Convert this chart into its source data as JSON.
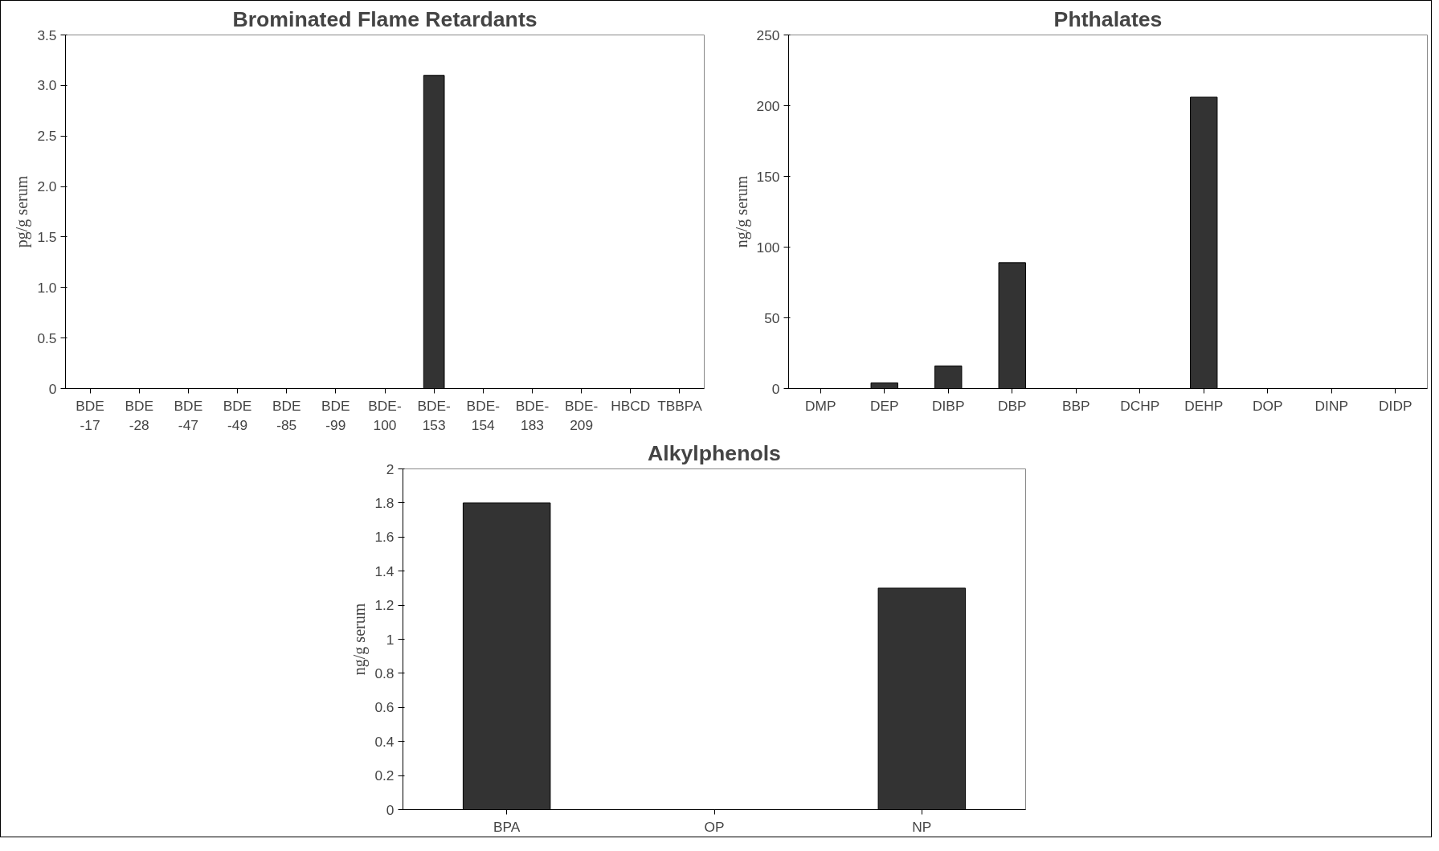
{
  "chart_data": [
    {
      "type": "bar",
      "title": "Brominated Flame Retardants",
      "ylabel": "pg/g serum",
      "categories": [
        "BDE\n-17",
        "BDE\n-28",
        "BDE\n-47",
        "BDE\n-49",
        "BDE\n-85",
        "BDE\n-99",
        "BDE-\n100",
        "BDE-\n153",
        "BDE-\n154",
        "BDE-\n183",
        "BDE-\n209",
        "HBCD",
        "TBBPA"
      ],
      "values": [
        0,
        0,
        0,
        0,
        0,
        0,
        0,
        3.1,
        0,
        0,
        0,
        0,
        0
      ],
      "color": "#333333",
      "ylim": [
        0,
        3.5
      ],
      "yticks": [
        0,
        {
          "value": 0.5,
          "label": "0.5"
        },
        {
          "value": 1,
          "label": "1.0"
        },
        {
          "value": 1.5,
          "label": "1.5"
        },
        {
          "value": 2,
          "label": "2.0"
        },
        {
          "value": 2.5,
          "label": "2.5"
        },
        {
          "value": 3,
          "label": "3.0"
        },
        {
          "value": 3.5,
          "label": "3.5"
        }
      ],
      "grid": false
    },
    {
      "type": "bar",
      "title": "Phthalates",
      "ylabel": "ng/g serum",
      "categories": [
        "DMP",
        "DEP",
        "DIBP",
        "DBP",
        "BBP",
        "DCHP",
        "DEHP",
        "DOP",
        "DINP",
        "DIDP"
      ],
      "values": [
        0,
        4,
        16,
        89,
        0,
        0,
        206,
        0,
        0,
        0
      ],
      "color": "#333333",
      "ylim": [
        0,
        250
      ],
      "yticks": [
        0,
        50,
        100,
        150,
        200,
        250
      ],
      "grid": false
    },
    {
      "type": "bar",
      "title": "Alkylphenols",
      "ylabel": "ng/g serum",
      "categories": [
        "BPA",
        "OP",
        "NP"
      ],
      "values": [
        1.8,
        0,
        1.3
      ],
      "color": "#333333",
      "ylim": [
        0,
        2
      ],
      "yticks": [
        0,
        0.2,
        0.4,
        0.6,
        0.8,
        1,
        1.2,
        1.4,
        1.6,
        1.8,
        2
      ],
      "grid": false
    }
  ]
}
